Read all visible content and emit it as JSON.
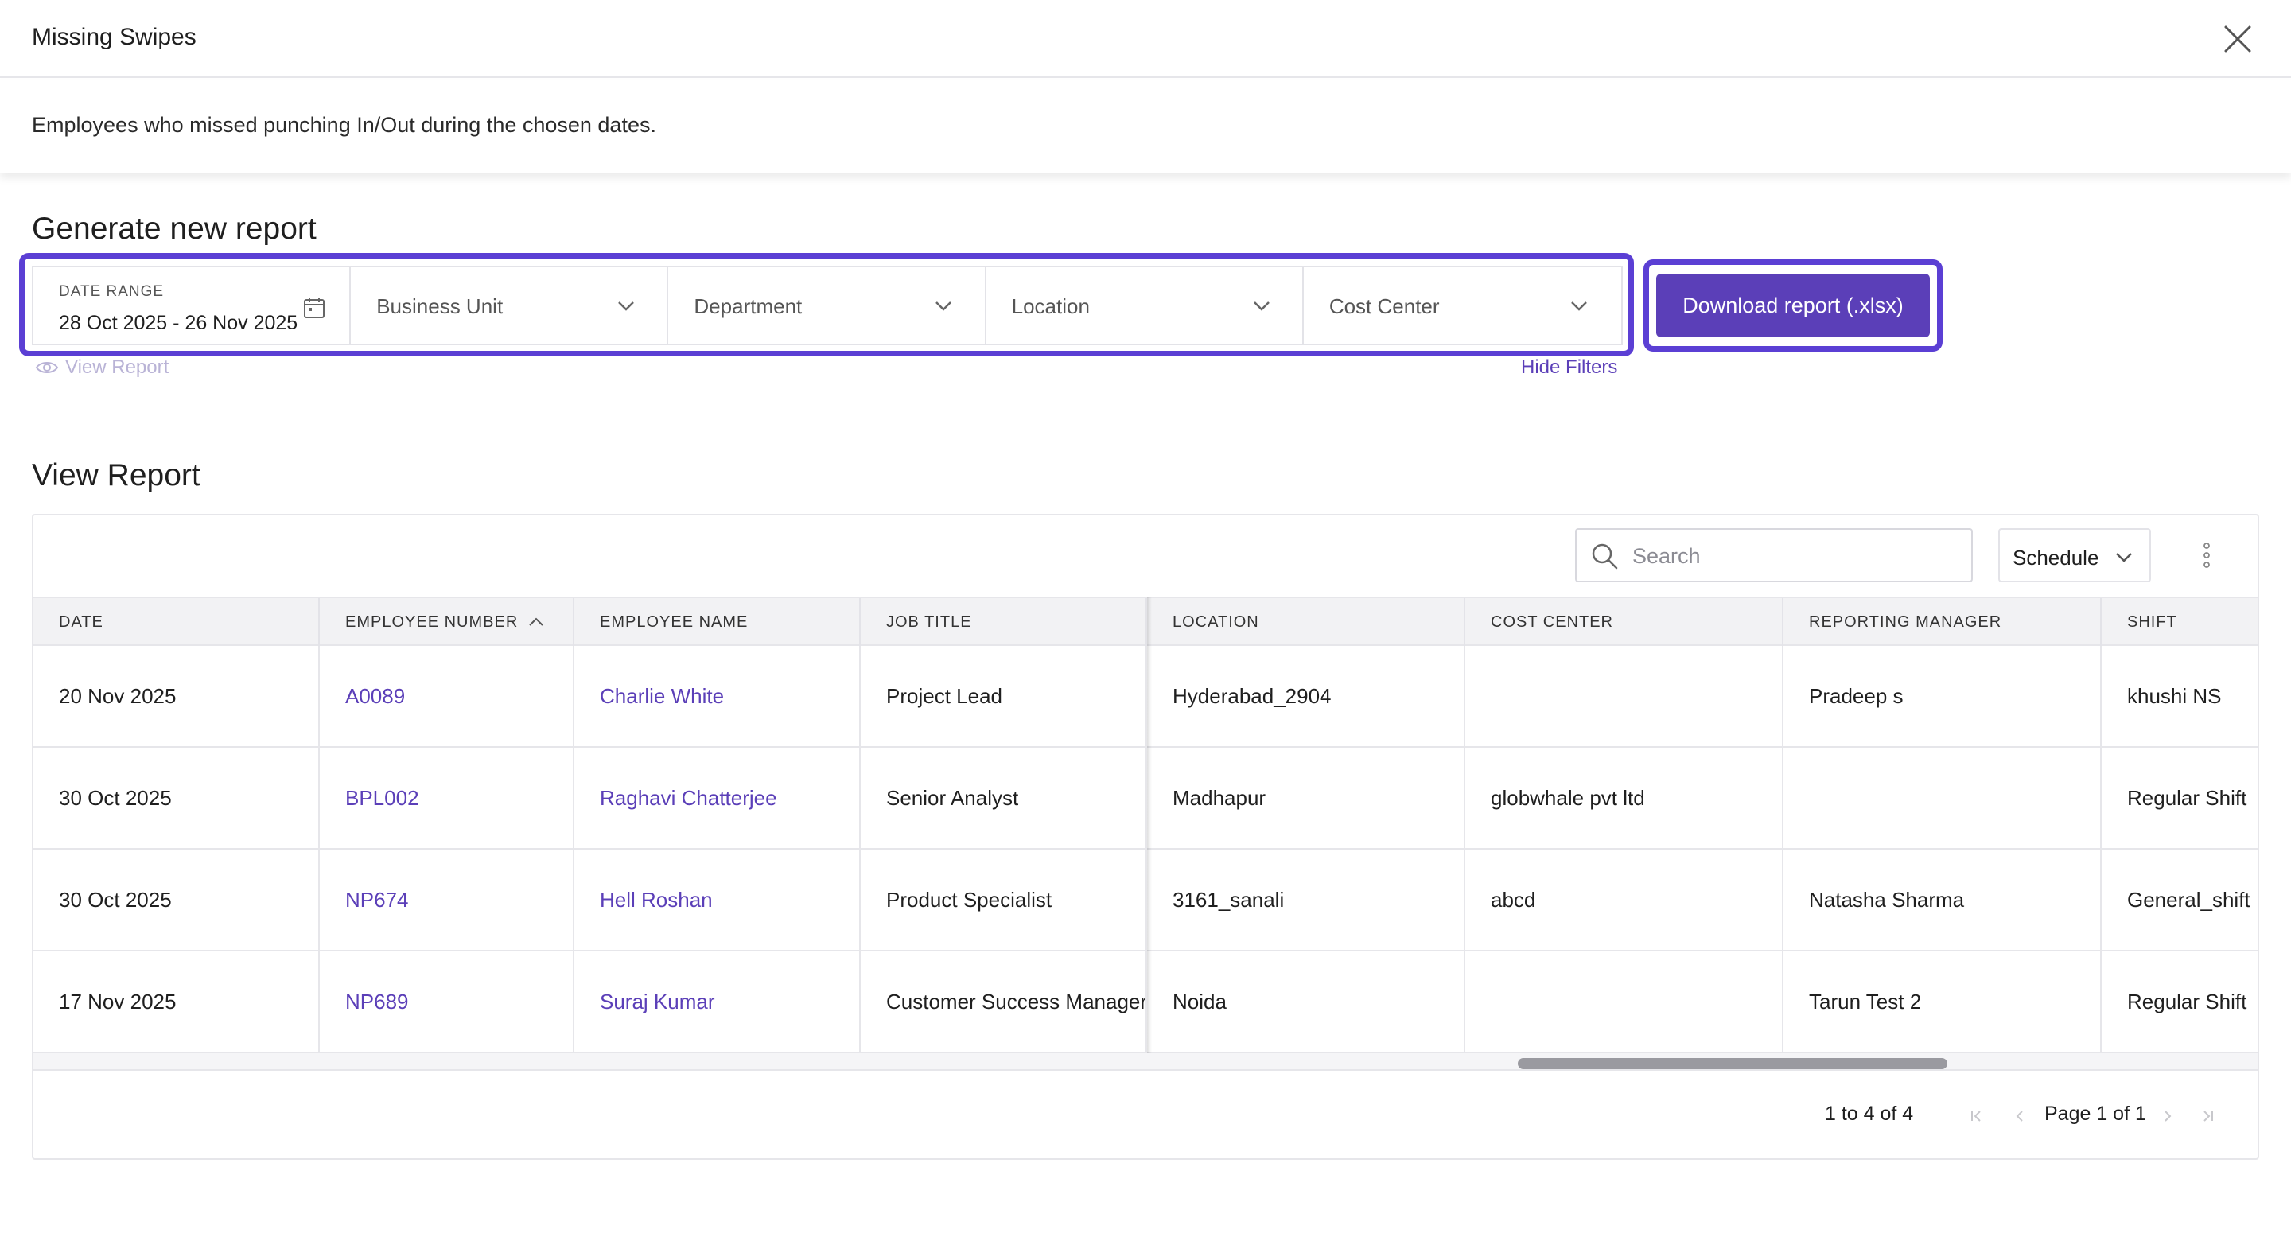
{
  "modal": {
    "title": "Missing Swipes",
    "description": "Employees who missed punching In/Out during the chosen dates."
  },
  "generate": {
    "heading": "Generate new report",
    "date_range_label": "DATE RANGE",
    "date_range_value": "28 Oct 2025 - 26 Nov 2025",
    "filters": [
      "Business Unit",
      "Department",
      "Location",
      "Cost Center"
    ],
    "download_label": "Download report (.xlsx)",
    "view_report_link": "View Report",
    "hide_filters_link": "Hide Filters"
  },
  "report": {
    "heading": "View Report",
    "search_placeholder": "Search",
    "schedule_label": "Schedule",
    "columns": [
      "DATE",
      "EMPLOYEE NUMBER",
      "EMPLOYEE NAME",
      "JOB TITLE",
      "LOCATION",
      "COST CENTER",
      "REPORTING MANAGER",
      "SHIFT"
    ],
    "sorted_column": "EMPLOYEE NUMBER",
    "rows": [
      [
        "20 Nov 2025",
        "A0089",
        "Charlie White",
        "Project Lead",
        "Hyderabad_2904",
        "",
        "Pradeep s",
        "khushi NS"
      ],
      [
        "30 Oct 2025",
        "BPL002",
        "Raghavi Chatterjee",
        "Senior Analyst",
        "Madhapur",
        "globwhale pvt ltd",
        "",
        "Regular Shift"
      ],
      [
        "30 Oct 2025",
        "NP674",
        "Hell Roshan",
        "Product Specialist",
        "3161_sanali",
        "abcd",
        "Natasha Sharma",
        "General_shift"
      ],
      [
        "17 Nov 2025",
        "NP689",
        "Suraj Kumar",
        "Customer Success Manager",
        "Noida",
        "",
        "Tarun Test 2",
        "Regular Shift"
      ]
    ],
    "pagination": {
      "range_text": "1 to 4 of 4",
      "page_text": "Page 1 of 1"
    }
  },
  "colors": {
    "accent": "#5b3fb8",
    "highlight_outline": "#5b3fd4",
    "link_disabled": "#b9b3d6"
  },
  "icons": [
    "close-icon",
    "calendar-icon",
    "chevron-down-icon",
    "eye-icon",
    "search-icon",
    "kebab-icon",
    "sort-ascending-icon",
    "first-page-icon",
    "prev-page-icon",
    "next-page-icon",
    "last-page-icon"
  ]
}
